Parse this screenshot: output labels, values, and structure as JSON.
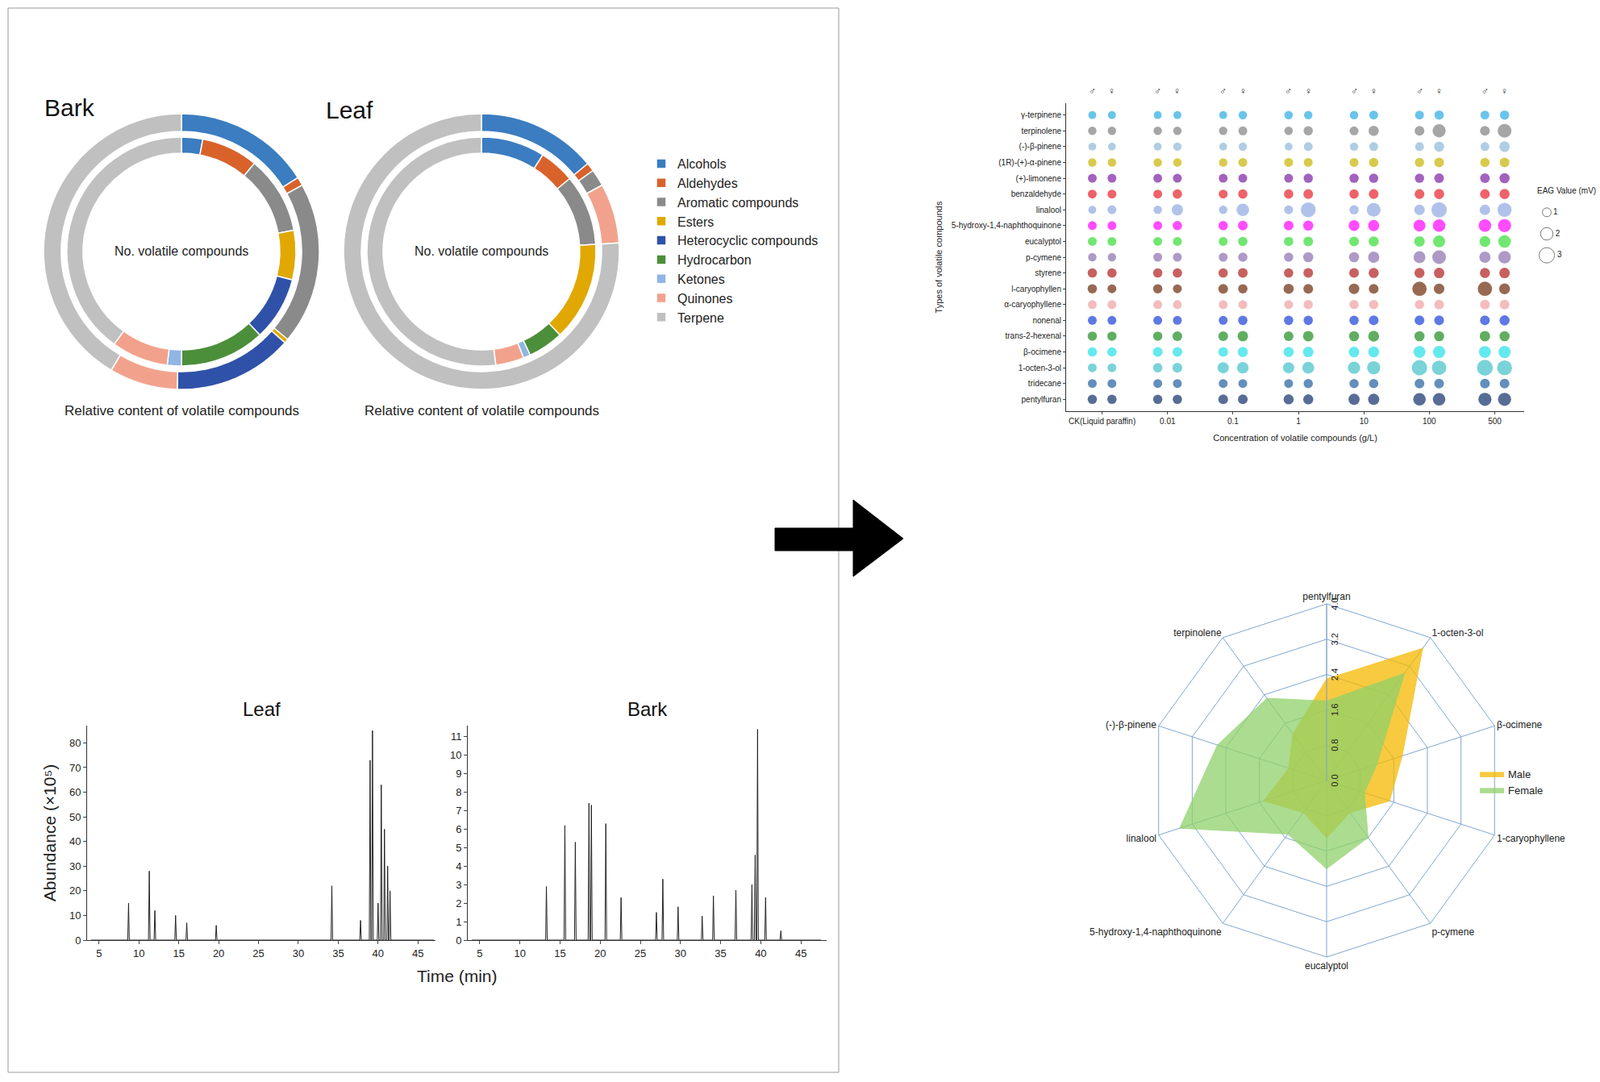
{
  "chart_data": [
    {
      "type": "donut",
      "title": "Bark",
      "categories": [
        "Alcohols",
        "Aldehydes",
        "Aromatic compounds",
        "Esters",
        "Heterocyclic compounds",
        "Hydrocarbon",
        "Ketones",
        "Quinones",
        "Terpene"
      ],
      "colors": [
        "#3b7dc0",
        "#d9622b",
        "#8a8a8a",
        "#e0a800",
        "#2f52a8",
        "#4c8f3a",
        "#8fb6e2",
        "#f2a28c",
        "#c0c0c0"
      ],
      "series": [
        {
          "name": "No. volatile compounds",
          "values": [
            3,
            8,
            11,
            7,
            9,
            12,
            2,
            8,
            40
          ]
        },
        {
          "name": "Relative content of volatile compounds",
          "values": [
            16,
            1,
            19,
            0.5,
            14,
            0,
            0,
            8,
            41.5
          ]
        }
      ]
    },
    {
      "type": "donut",
      "title": "Leaf",
      "categories": [
        "Alcohols",
        "Aldehydes",
        "Aromatic compounds",
        "Esters",
        "Heterocyclic compounds",
        "Hydrocarbon",
        "Ketones",
        "Quinones",
        "Terpene"
      ],
      "colors": [
        "#3b7dc0",
        "#d9622b",
        "#8a8a8a",
        "#e0a800",
        "#2f52a8",
        "#4c8f3a",
        "#8fb6e2",
        "#f2a28c",
        "#c0c0c0"
      ],
      "series": [
        {
          "name": "No. volatile compounds",
          "values": [
            9,
            5,
            10,
            14,
            0,
            5,
            1,
            4,
            52
          ]
        },
        {
          "name": "Relative content of volatile compounds",
          "values": [
            14,
            1,
            2,
            0,
            0,
            0,
            0,
            7,
            76
          ]
        }
      ]
    },
    {
      "type": "line",
      "title": "Leaf",
      "x_label": "Time (min)",
      "y_label": "Abundance (×10⁵)",
      "color": "#222222",
      "x": [
        4,
        8.6,
        8.7,
        8.8,
        11.2,
        11.3,
        11.4,
        11.9,
        12.0,
        12.1,
        14.5,
        14.6,
        14.7,
        15.9,
        16.0,
        16.1,
        19.6,
        19.7,
        19.8,
        34.1,
        34.2,
        34.3,
        37.7,
        37.8,
        37.9,
        38.9,
        39.0,
        39.1,
        39.2,
        39.3,
        39.4,
        39.9,
        40.0,
        40.1,
        40.3,
        40.4,
        40.5,
        40.7,
        40.8,
        40.9,
        41.1,
        41.2,
        41.3,
        41.4,
        41.5,
        41.6,
        47
      ],
      "values": [
        0,
        0,
        15,
        0,
        0,
        28,
        0,
        0,
        12,
        0,
        0,
        10,
        0,
        0,
        7,
        0,
        0,
        6,
        0,
        0,
        22,
        0,
        0,
        8,
        0,
        0,
        73,
        0,
        0,
        85,
        0,
        0,
        15,
        0,
        0,
        63,
        0,
        0,
        45,
        0,
        0,
        30,
        0,
        0,
        20,
        0,
        0
      ],
      "xlim": [
        3.5,
        47.2
      ],
      "xticks": [
        5,
        10,
        15,
        20,
        25,
        30,
        35,
        40,
        45
      ],
      "ylim": [
        0,
        87
      ],
      "yticks": [
        0,
        10,
        20,
        30,
        40,
        50,
        60,
        70,
        80
      ]
    },
    {
      "type": "line",
      "title": "Bark",
      "color": "#222222",
      "x": [
        4,
        13.2,
        13.3,
        13.4,
        15.5,
        15.6,
        15.7,
        16.8,
        16.9,
        17.0,
        18.5,
        18.6,
        18.7,
        18.8,
        18.9,
        19.0,
        20.6,
        20.7,
        20.8,
        22.5,
        22.6,
        22.7,
        26.9,
        27.0,
        27.1,
        27.7,
        27.8,
        27.9,
        29.6,
        29.7,
        29.8,
        32.6,
        32.7,
        32.8,
        34.0,
        34.1,
        34.2,
        36.8,
        36.9,
        37.0,
        38.8,
        38.9,
        39.0,
        39.2,
        39.3,
        39.4,
        39.5,
        39.6,
        39.7,
        40.5,
        40.6,
        40.7,
        42.4,
        42.5,
        42.6,
        47.5
      ],
      "values": [
        0,
        0,
        2.9,
        0,
        0,
        6.2,
        0,
        0,
        5.3,
        0,
        0,
        7.4,
        0,
        0,
        7.3,
        0,
        0,
        6.3,
        0,
        0,
        2.3,
        0,
        0,
        1.5,
        0,
        0,
        3.3,
        0,
        0,
        1.8,
        0,
        0,
        1.3,
        0,
        0,
        2.4,
        0,
        0,
        2.7,
        0,
        0,
        3.0,
        0,
        0,
        4.6,
        0,
        0,
        11.4,
        0,
        0,
        2.3,
        0,
        0,
        0.5,
        0,
        0
      ],
      "xlim": [
        3.5,
        48.2
      ],
      "xticks": [
        5,
        10,
        15,
        20,
        25,
        30,
        35,
        40,
        45
      ],
      "ylim": [
        0,
        11.6
      ],
      "yticks": [
        0,
        1,
        2,
        3,
        4,
        5,
        6,
        7,
        8,
        9,
        10,
        11
      ]
    },
    {
      "type": "bubble",
      "x_label": "Concentration of volatile compounds (g/L)",
      "y_label": "Types of volatile compounds",
      "categories": [
        "CK(Liquid paraffin)",
        "0.01",
        "0.1",
        "1",
        "10",
        "100",
        "500"
      ],
      "groups": [
        "♂",
        "♀"
      ],
      "size_legend": {
        "title": "EAG Value (mV)",
        "values": [
          1,
          2,
          3
        ]
      },
      "series": [
        {
          "name": "γ-terpinene",
          "color": "#29abe2",
          "values": [
            [
              0.8,
              0.8,
              0.8,
              0.9,
              0.9,
              1.0,
              1.0
            ],
            [
              0.8,
              0.8,
              0.9,
              0.9,
              1.0,
              1.1,
              1.1
            ]
          ]
        },
        {
          "name": "terpinolene",
          "color": "#808080",
          "values": [
            [
              0.9,
              0.9,
              0.9,
              0.9,
              1.0,
              1.2,
              1.2
            ],
            [
              0.9,
              0.9,
              1.0,
              1.1,
              1.3,
              2.2,
              2.4
            ]
          ]
        },
        {
          "name": "(-)-β-pinene",
          "color": "#8fb8d8",
          "values": [
            [
              0.8,
              0.8,
              0.8,
              0.8,
              0.9,
              1.0,
              1.0
            ],
            [
              0.8,
              0.9,
              0.9,
              1.0,
              1.0,
              1.3,
              1.4
            ]
          ]
        },
        {
          "name": "(1R)-(+)-α-pinene",
          "color": "#c8b400",
          "values": [
            [
              0.9,
              0.9,
              0.9,
              1.0,
              1.0,
              1.1,
              1.1
            ],
            [
              0.9,
              0.9,
              1.0,
              1.0,
              1.1,
              1.2,
              1.2
            ]
          ]
        },
        {
          "name": "(+)-limonene",
          "color": "#7a1fa2",
          "values": [
            [
              1.0,
              1.0,
              1.0,
              1.0,
              1.1,
              1.1,
              1.2
            ],
            [
              1.0,
              1.0,
              1.0,
              1.1,
              1.1,
              1.2,
              1.3
            ]
          ]
        },
        {
          "name": "benzaldehyde",
          "color": "#e8202a",
          "values": [
            [
              1.0,
              1.0,
              1.0,
              1.1,
              1.1,
              1.2,
              1.2
            ],
            [
              1.0,
              1.1,
              1.1,
              1.2,
              1.2,
              1.3,
              1.3
            ]
          ]
        },
        {
          "name": "linalool",
          "color": "#8fa8e0",
          "values": [
            [
              0.8,
              0.9,
              0.9,
              1.0,
              1.1,
              1.4,
              1.4
            ],
            [
              1.0,
              1.6,
              2.0,
              2.8,
              2.4,
              3.0,
              2.5
            ]
          ]
        },
        {
          "name": "5-hydroxy-1,4-naphthoquinone",
          "color": "#ff00ff",
          "values": [
            [
              1.0,
              1.0,
              1.1,
              1.2,
              1.5,
              1.8,
              2.0
            ],
            [
              1.0,
              1.1,
              1.2,
              1.3,
              1.6,
              2.0,
              2.2
            ]
          ]
        },
        {
          "name": "eucalyptol",
          "color": "#33dd33",
          "values": [
            [
              1.0,
              1.0,
              1.0,
              1.1,
              1.2,
              1.4,
              1.5
            ],
            [
              1.0,
              1.0,
              1.1,
              1.2,
              1.3,
              1.8,
              2.0
            ]
          ]
        },
        {
          "name": "p-cymene",
          "color": "#8a6fae",
          "values": [
            [
              0.9,
              1.0,
              1.0,
              1.1,
              1.3,
              1.8,
              1.6
            ],
            [
              0.9,
              1.0,
              1.1,
              1.3,
              1.6,
              2.4,
              2.0
            ]
          ]
        },
        {
          "name": "styrene",
          "color": "#b01c1c",
          "values": [
            [
              1.1,
              1.1,
              1.1,
              1.1,
              1.2,
              1.3,
              1.3
            ],
            [
              1.1,
              1.1,
              1.2,
              1.2,
              1.3,
              1.4,
              1.4
            ]
          ]
        },
        {
          "name": "l-caryophyllen",
          "color": "#6b2a0a",
          "values": [
            [
              1.1,
              1.1,
              1.2,
              1.3,
              1.4,
              2.6,
              2.6
            ],
            [
              1.0,
              1.0,
              1.1,
              1.2,
              1.2,
              1.4,
              1.5
            ]
          ]
        },
        {
          "name": "α-caryophyllene",
          "color": "#f0a0a0",
          "values": [
            [
              1.0,
              1.0,
              1.0,
              1.0,
              1.1,
              1.1,
              1.2
            ],
            [
              1.0,
              1.0,
              1.0,
              1.1,
              1.1,
              1.2,
              1.2
            ]
          ]
        },
        {
          "name": "nonenal",
          "color": "#1a3fd9",
          "values": [
            [
              1.0,
              1.0,
              1.0,
              1.1,
              1.1,
              1.2,
              1.2
            ],
            [
              1.0,
              1.0,
              1.1,
              1.1,
              1.2,
              1.2,
              1.3
            ]
          ]
        },
        {
          "name": "trans-2-hexenal",
          "color": "#1e8c1e",
          "values": [
            [
              1.1,
              1.1,
              1.2,
              1.2,
              1.3,
              1.3,
              1.4
            ],
            [
              1.1,
              1.2,
              1.4,
              1.4,
              1.5,
              1.3,
              1.3
            ]
          ]
        },
        {
          "name": "β-ocimene",
          "color": "#22e0e8",
          "values": [
            [
              1.1,
              1.2,
              1.2,
              1.3,
              1.4,
              1.8,
              1.8
            ],
            [
              1.1,
              1.2,
              1.3,
              1.4,
              1.5,
              1.9,
              1.9
            ]
          ]
        },
        {
          "name": "1-octen-3-ol",
          "color": "#40c0c8",
          "values": [
            [
              1.0,
              1.1,
              1.6,
              1.6,
              1.9,
              3.0,
              3.2
            ],
            [
              1.0,
              1.2,
              1.7,
              1.8,
              2.2,
              2.6,
              2.8
            ]
          ]
        },
        {
          "name": "tridecane",
          "color": "#1f5fa0",
          "values": [
            [
              1.0,
              1.0,
              1.0,
              1.0,
              1.1,
              1.2,
              1.2
            ],
            [
              1.0,
              1.0,
              1.0,
              1.1,
              1.1,
              1.2,
              1.2
            ]
          ]
        },
        {
          "name": "pentylfuran",
          "color": "#0f2f6a",
          "values": [
            [
              1.1,
              1.1,
              1.2,
              1.3,
              1.6,
              2.0,
              2.2
            ],
            [
              1.1,
              1.1,
              1.2,
              1.3,
              1.6,
              2.0,
              2.2
            ]
          ]
        }
      ]
    },
    {
      "type": "radar",
      "categories": [
        "pentylfuran",
        "1-octen-3-ol",
        "β-ocimene",
        "1-caryophyllene",
        "p-cymene",
        "eucalyptol",
        "5-hydroxy-1,4-naphthoquinone",
        "linalool",
        "(-)-β-pinene",
        "terpinolene"
      ],
      "series": [
        {
          "name": "Male",
          "color": "#f5b800",
          "values": [
            2.3,
            3.7,
            1.8,
            1.5,
            0.9,
            1.3,
            0.9,
            1.5,
            0.9,
            1.3
          ]
        },
        {
          "name": "Female",
          "color": "#8fd16a",
          "values": [
            1.8,
            3.0,
            1.2,
            0.9,
            1.6,
            2.0,
            1.5,
            3.5,
            2.6,
            2.3
          ]
        }
      ],
      "ylim": [
        0,
        4
      ],
      "yticks": [
        {
          "value": 0,
          "label": "0.0"
        },
        0.8,
        1.6,
        2.4,
        3.2,
        {
          "value": 4,
          "label": "4.0"
        }
      ]
    }
  ]
}
